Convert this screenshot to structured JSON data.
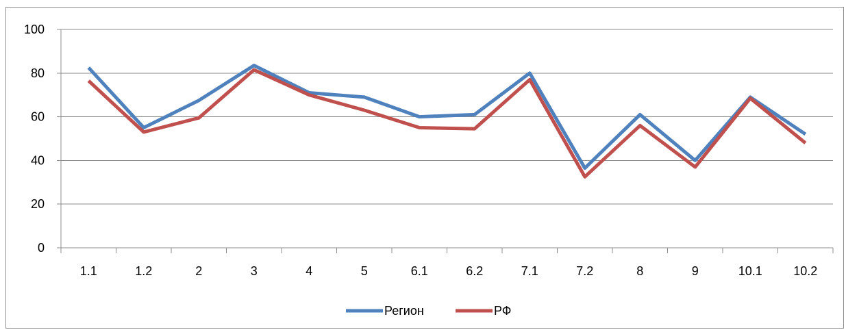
{
  "chart_data": {
    "type": "line",
    "categories": [
      "1.1",
      "1.2",
      "2",
      "3",
      "4",
      "5",
      "6.1",
      "6.2",
      "7.1",
      "7.2",
      "8",
      "9",
      "10.1",
      "10.2"
    ],
    "series": [
      {
        "name": "Регион",
        "color": "#4f81bd",
        "values": [
          82.5,
          55,
          67.5,
          83.5,
          71,
          69,
          60,
          61,
          80,
          36.5,
          61,
          40,
          69,
          52
        ]
      },
      {
        "name": "РФ",
        "color": "#c0504d",
        "values": [
          76.5,
          53,
          59.5,
          81.5,
          70,
          63,
          55,
          54.5,
          77,
          32.5,
          56,
          37,
          68.5,
          48
        ]
      }
    ],
    "y_ticks": [
      "0",
      "20",
      "40",
      "60",
      "80",
      "100"
    ],
    "ylim": [
      0,
      100
    ],
    "grid": true,
    "legend_position": "bottom",
    "title": "",
    "xlabel": "",
    "ylabel": ""
  }
}
